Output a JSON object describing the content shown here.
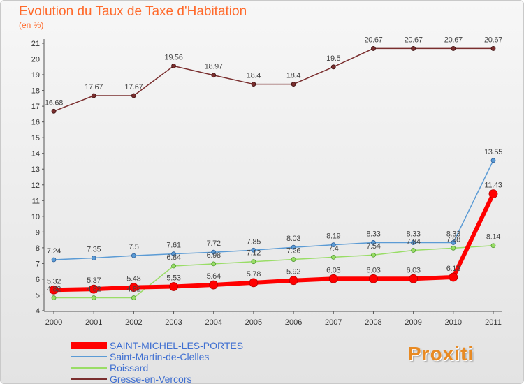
{
  "header": {
    "title": "Evolution du Taux de Taxe d'Habitation",
    "subtitle": "(en %)"
  },
  "logo": {
    "text": "Proxiti"
  },
  "chart_data": {
    "type": "line",
    "title": "Evolution du Taux de Taxe d'Habitation",
    "subtitle": "(en %)",
    "xlabel": "",
    "ylabel": "(en %)",
    "categories": [
      "2000",
      "2001",
      "2002",
      "2003",
      "2004",
      "2005",
      "2006",
      "2007",
      "2008",
      "2009",
      "2010",
      "2011"
    ],
    "yticks": [
      "4",
      "5",
      "6",
      "7",
      "8",
      "9",
      "10",
      "11",
      "12",
      "13",
      "14",
      "15",
      "16",
      "17",
      "18",
      "19",
      "20",
      "21"
    ],
    "ylim": [
      4,
      21
    ],
    "grid": false,
    "legend": "bottom-left",
    "series": [
      {
        "name": "SAINT-MICHEL-LES-PORTES",
        "color": "#ff0000",
        "values": [
          5.32,
          5.37,
          5.48,
          5.53,
          5.64,
          5.78,
          5.92,
          6.03,
          6.03,
          6.03,
          6.13,
          11.43
        ],
        "labels": [
          "5.32",
          "5.37",
          "5.48",
          "5.53",
          "5.64",
          "5.78",
          "5.92",
          "6.03",
          "6.03",
          "6.03",
          "6.13",
          "11.43"
        ]
      },
      {
        "name": "Saint-Martin-de-Clelles",
        "color": "#5b9bd5",
        "values": [
          7.24,
          7.35,
          7.5,
          7.61,
          7.72,
          7.85,
          8.03,
          8.19,
          8.33,
          8.33,
          8.33,
          13.55
        ],
        "labels": [
          "7.24",
          "7.35",
          "7.5",
          "7.61",
          "7.72",
          "7.85",
          "8.03",
          "8.19",
          "8.33",
          "8.33",
          "8.33",
          "13.55"
        ]
      },
      {
        "name": "Roissard",
        "color": "#99dd66",
        "values": [
          4.82,
          4.82,
          4.82,
          6.84,
          6.98,
          7.12,
          7.26,
          7.4,
          7.54,
          7.84,
          7.98,
          8.14
        ],
        "labels": [
          "4.82",
          "4.82",
          "4.82",
          "6.84",
          "6.98",
          "7.12",
          "7.26",
          "7.4",
          "7.54",
          "7.84",
          "7.98",
          "8.14"
        ]
      },
      {
        "name": "Gresse-en-Vercors",
        "color": "#7a2e2e",
        "values": [
          16.68,
          17.67,
          17.67,
          19.56,
          18.97,
          18.4,
          18.4,
          19.5,
          20.67,
          20.67,
          20.67,
          20.67
        ],
        "labels": [
          "16.68",
          "17.67",
          "17.67",
          "19.56",
          "18.97",
          "18.4",
          "18.4",
          "19.5",
          "20.67",
          "20.67",
          "20.67",
          "20.67"
        ]
      }
    ]
  }
}
